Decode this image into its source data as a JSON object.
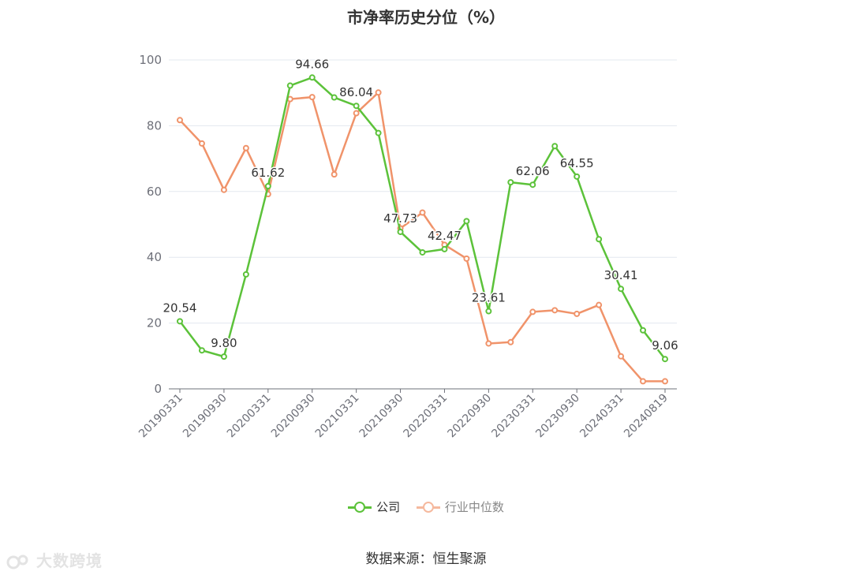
{
  "colors": {
    "company": "#5cc23a",
    "industry": "#f0936a",
    "grid": "#e3e8ef",
    "axis": "#6e7079",
    "label": "#333333",
    "tick": "#6e7079"
  },
  "chart_data": {
    "type": "line",
    "title": "市净率历史分位（%）",
    "xlabel": "",
    "ylabel": "",
    "ylim": [
      0,
      100
    ],
    "yticks": [
      0,
      20,
      40,
      60,
      80,
      100
    ],
    "grid": true,
    "legend_position": "bottom",
    "x": [
      "20190331",
      "20190630",
      "20190930",
      "20191231",
      "20200331",
      "20200630",
      "20200930",
      "20201231",
      "20210331",
      "20210630",
      "20210930",
      "20211231",
      "20220331",
      "20220630",
      "20220930",
      "20221231",
      "20230331",
      "20230630",
      "20230930",
      "20231231",
      "20240331",
      "20240630",
      "20240819"
    ],
    "x_tick_labels": [
      "20190331",
      "20190930",
      "20200331",
      "20200930",
      "20210331",
      "20210930",
      "20220331",
      "20220930",
      "20230331",
      "20230930",
      "20240331",
      "20240819"
    ],
    "x_tick_indices": [
      0,
      2,
      4,
      6,
      8,
      10,
      12,
      14,
      16,
      18,
      20,
      22
    ],
    "series": [
      {
        "name": "公司",
        "color": "#5cc23a",
        "values": [
          20.54,
          11.7,
          9.8,
          34.8,
          61.62,
          92.2,
          94.66,
          88.6,
          86.04,
          77.8,
          47.73,
          41.5,
          42.47,
          51.0,
          23.61,
          62.8,
          62.06,
          73.8,
          64.55,
          45.5,
          30.41,
          17.8,
          9.06
        ],
        "labeled_points": [
          {
            "index": 0,
            "text": "20.54"
          },
          {
            "index": 2,
            "text": "9.80"
          },
          {
            "index": 4,
            "text": "61.62"
          },
          {
            "index": 6,
            "text": "94.66"
          },
          {
            "index": 8,
            "text": "86.04"
          },
          {
            "index": 10,
            "text": "47.73"
          },
          {
            "index": 12,
            "text": "42.47"
          },
          {
            "index": 14,
            "text": "23.61"
          },
          {
            "index": 16,
            "text": "62.06"
          },
          {
            "index": 18,
            "text": "64.55"
          },
          {
            "index": 20,
            "text": "30.41"
          },
          {
            "index": 22,
            "text": "9.06"
          }
        ]
      },
      {
        "name": "行业中位数",
        "color": "#f0936a",
        "values": [
          81.7,
          74.6,
          60.5,
          73.2,
          59.2,
          88.1,
          88.7,
          65.2,
          83.8,
          90.1,
          48.8,
          53.6,
          43.8,
          39.6,
          13.8,
          14.2,
          23.4,
          23.9,
          22.8,
          25.5,
          9.9,
          2.3,
          2.3
        ]
      }
    ]
  },
  "legend": {
    "company_label": "公司",
    "industry_label": "行业中位数"
  },
  "footer": {
    "source": "数据来源：恒生聚源",
    "watermark": "大数跨境"
  }
}
